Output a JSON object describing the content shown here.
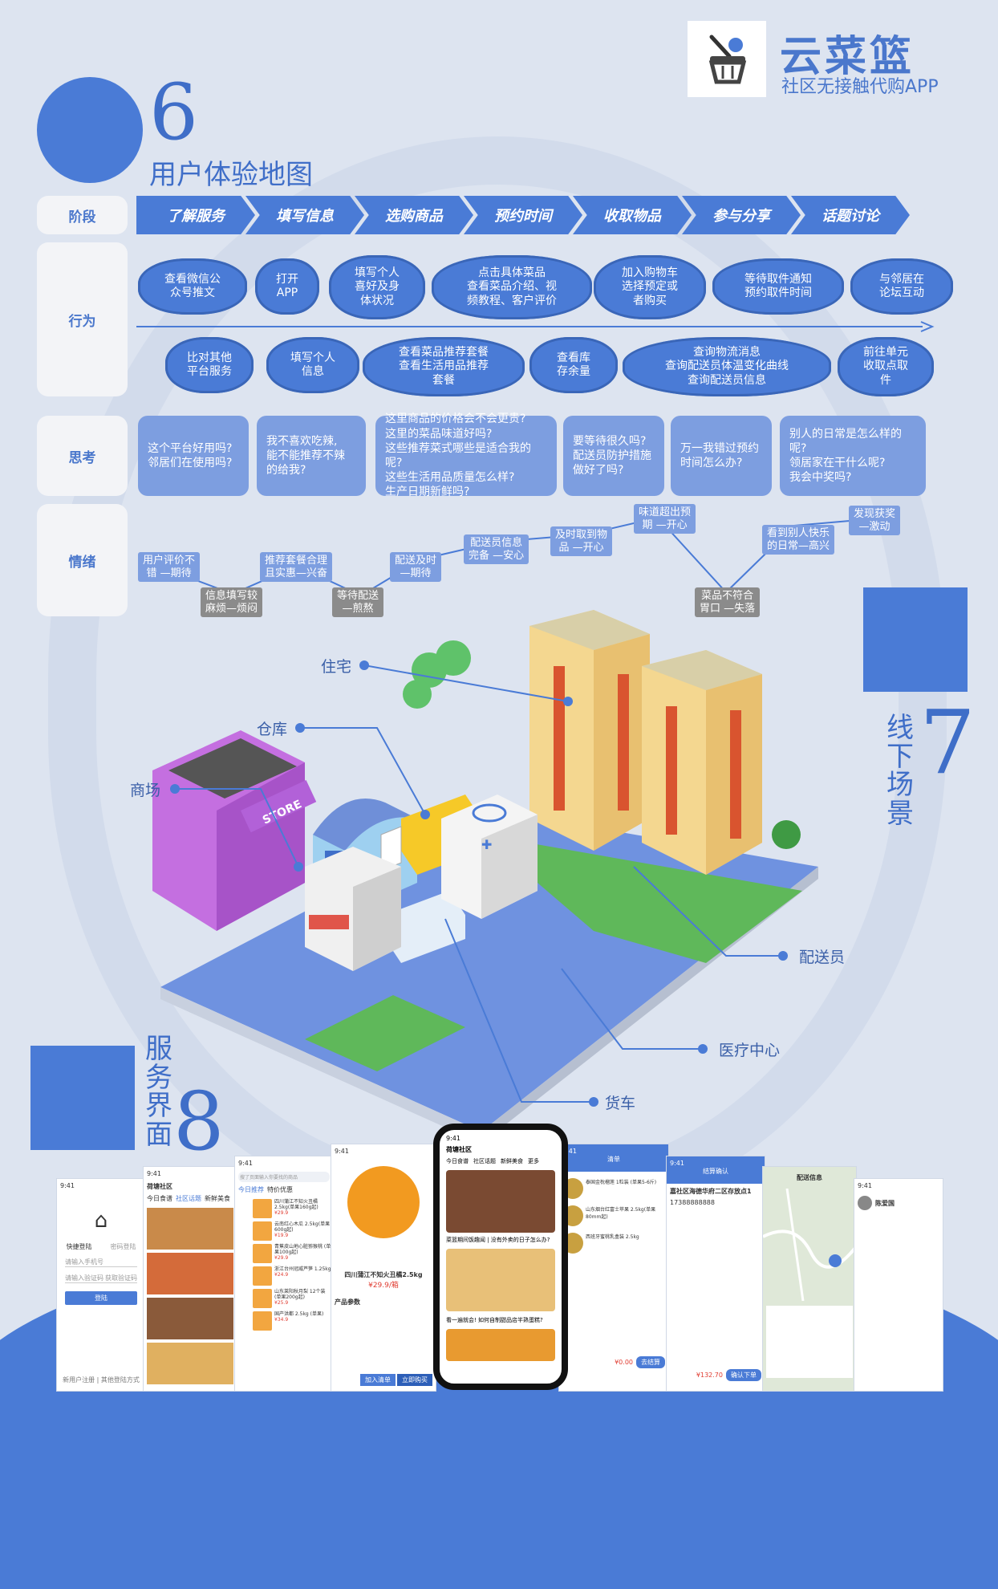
{
  "brand": {
    "title": "云菜篮",
    "subtitle": "社区无接触代购APP"
  },
  "section6": {
    "number": "6",
    "title": "用户体验地图"
  },
  "row_labels": {
    "stage": "阶段",
    "action": "行为",
    "think": "思考",
    "emotion": "情绪"
  },
  "stages": [
    "了解服务",
    "填写信息",
    "选购商品",
    "预约时间",
    "收取物品",
    "参与分享",
    "话题讨论"
  ],
  "actions_top": [
    "查看微信公\n众号推文",
    "打开\nAPP",
    "填写个人\n喜好及身\n体状况",
    "点击具体菜品\n查看菜品介绍、视\n频教程、客户评价",
    "加入购物车\n选择预定或\n者购买",
    "等待取件通知\n预约取件时间",
    "与邻居在\n论坛互动"
  ],
  "actions_bottom": [
    "比对其他\n平台服务",
    "填写个人\n信息",
    "查看菜品推荐套餐\n查看生活用品推荐\n套餐",
    "查看库\n存余量",
    "查询物流消息\n查询配送员体温变化曲线\n查询配送员信息",
    "前往单元\n收取点取\n件"
  ],
  "thoughts": [
    "这个平台好用吗?\n邻居们在使用吗?",
    "我不喜欢吃辣,\n能不能推荐不辣\n的给我?",
    "这里商品的价格会不会更贵?\n这里的菜品味道好吗?\n这些推荐菜式哪些是适合我的呢?\n这些生活用品质量怎么样?\n生产日期新鲜吗?",
    "要等待很久吗?\n配送员防护措施\n做好了吗?",
    "万一我错过预约\n时间怎么办?",
    "别人的日常是怎么样的呢?\n领居家在干什么呢?\n我会中奖吗?"
  ],
  "emotions": [
    {
      "text": "用户评价不\n错 —期待",
      "tone": "pos"
    },
    {
      "text": "信息填写较\n麻烦—烦闷",
      "tone": "neg"
    },
    {
      "text": "推荐套餐合理\n且实惠—兴奋",
      "tone": "pos"
    },
    {
      "text": "等待配送\n—煎熬",
      "tone": "neg"
    },
    {
      "text": "配送及时\n—期待",
      "tone": "pos"
    },
    {
      "text": "配送员信息\n完备 —安心",
      "tone": "pos"
    },
    {
      "text": "及时取到物\n品 —开心",
      "tone": "pos"
    },
    {
      "text": "味道超出预\n期 —开心",
      "tone": "pos"
    },
    {
      "text": "菜品不符合\n胃口 —失落",
      "tone": "neg"
    },
    {
      "text": "看到别人快乐\n的日常—高兴",
      "tone": "pos"
    },
    {
      "text": "发现获奖\n—激动",
      "tone": "pos"
    }
  ],
  "section7": {
    "number": "7",
    "title_chars": [
      "线",
      "下",
      "场",
      "景"
    ]
  },
  "places": [
    "住宅",
    "仓库",
    "商场",
    "配送员",
    "医疗中心",
    "货车"
  ],
  "section8": {
    "number": "8",
    "title_chars": [
      "服",
      "务",
      "界",
      "面"
    ]
  },
  "screens": {
    "login": {
      "time": "9:41",
      "tab1": "快捷登陆",
      "tab2": "密码登陆",
      "phone_ph": "请输入手机号",
      "code_ph": "请输入验证码",
      "get_code": "获取验证码",
      "login_btn": "登陆",
      "footer": "新用户注册 | 其他登陆方式"
    },
    "community": {
      "time": "9:41",
      "location": "荷塘社区",
      "tabs": [
        "今日食谱",
        "社区话题",
        "新鲜美食"
      ]
    },
    "category": {
      "time": "9:41",
      "search_ph": "搜了页面输入你要找的商品",
      "tabs": [
        "今日推荐",
        "特价优惠"
      ],
      "items": [
        {
          "name": "四川蒲江不知火丑橘 2.5kg(单果160g起)",
          "price": "¥29.9"
        },
        {
          "name": "云南红心木瓜 2.5kg(单果600g起)",
          "price": "¥19.9"
        },
        {
          "name": "青蕉皮山地心脏猕猴桃 (单果100g起)",
          "price": "¥29.9"
        },
        {
          "name": "浙江台州冠威芦笋 1.25kg",
          "price": "¥24.9"
        },
        {
          "name": "山东莱阳秋月梨 12个装 (单果200g起)",
          "price": "¥25.9"
        },
        {
          "name": "国产洪都 2.5kg (单果)",
          "price": "¥34.9"
        }
      ]
    },
    "product": {
      "time": "9:41",
      "name": "四川蒲江不知火丑橘2.5kg",
      "price": "¥29.9/箱",
      "params": "产品参数",
      "add_cart": "加入清单",
      "buy_now": "立即购买"
    },
    "feed": {
      "time": "9:41",
      "location": "荷塘社区",
      "tabs": [
        "今日食谱",
        "社区话题",
        "新鲜美食",
        "更多"
      ],
      "post1": "菜篮期间饭趣闻 | 没有外卖的日子怎么办?",
      "post2": "看一遍就会! 如何自制甜品店半熟蛋糕?"
    },
    "cart": {
      "time": "9:41",
      "title": "清单",
      "items": [
        "泰国金枕榴莲 1粒装 (单果5-6斤)",
        "山东烟台红富士苹果 2.5kg(单果80mm起)",
        "西班牙蜜桃乳盒装 2.5kg"
      ],
      "total": "¥0.00",
      "checkout": "去结算"
    },
    "confirm": {
      "time": "9:41",
      "title": "结算确认",
      "address": "嘉社区海德华府二区存放点1",
      "phone": "17388888888",
      "total": "¥132.70",
      "submit": "确认下单"
    },
    "map": {
      "title": "配送信息"
    },
    "profile": {
      "time": "9:41",
      "name": "陈爱国"
    }
  }
}
